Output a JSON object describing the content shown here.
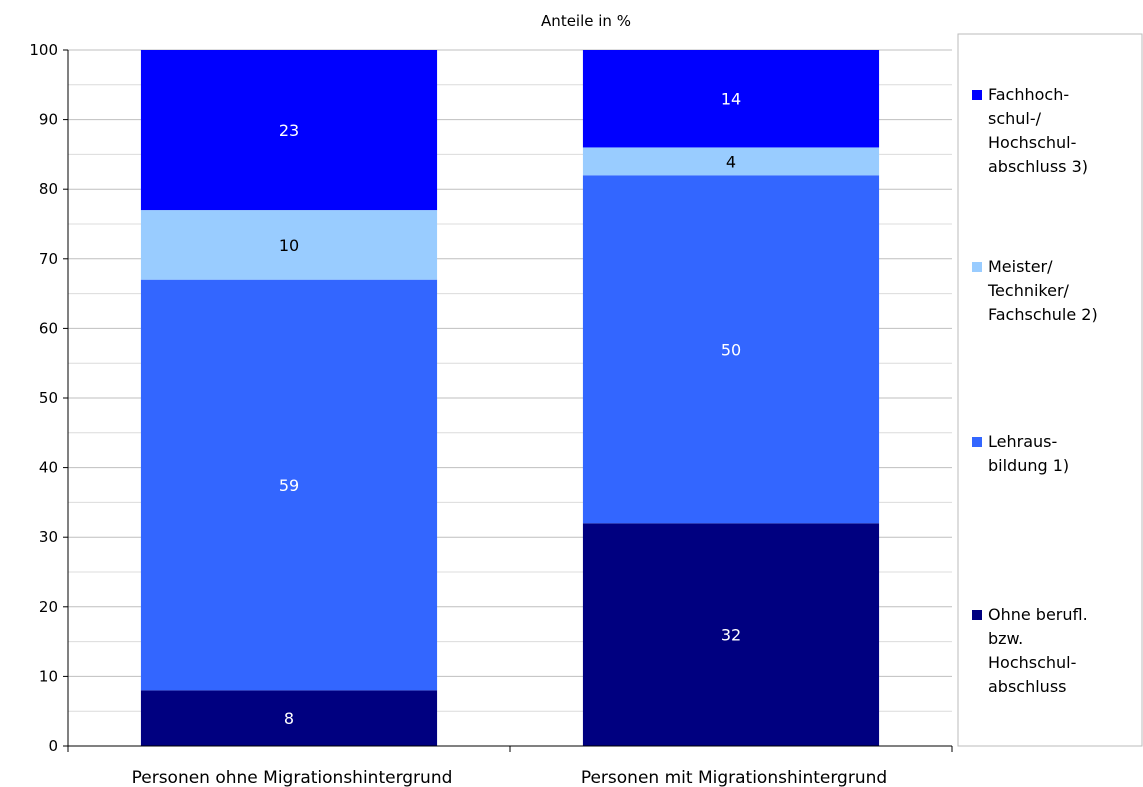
{
  "chart_data": {
    "type": "bar",
    "stacked": true,
    "title": "Anteile in %",
    "xlabel": "",
    "ylabel": "",
    "ylim": [
      0,
      100
    ],
    "yticks": [
      0,
      10,
      20,
      30,
      40,
      50,
      60,
      70,
      80,
      90,
      100
    ],
    "grid": true,
    "legend_position": "right",
    "categories": [
      "Personen ohne Migrationshintergrund",
      "Personen mit Migrationshintergrund"
    ],
    "series": [
      {
        "name": "Ohne berufl. bzw. Hochschul-abschluss",
        "legend_lines": [
          "Ohne berufl.",
          "bzw.",
          "Hochschul-",
          "abschluss"
        ],
        "color": "#000080",
        "label_color": "#ffffff",
        "values": [
          8,
          32
        ]
      },
      {
        "name": "Lehraus-bildung 1)",
        "legend_lines": [
          "Lehraus-",
          "bildung 1)"
        ],
        "color": "#3366ff",
        "label_color": "#ffffff",
        "values": [
          59,
          50
        ]
      },
      {
        "name": "Meister/ Techniker/ Fachschule 2)",
        "legend_lines": [
          "Meister/",
          "Techniker/",
          "Fachschule 2)"
        ],
        "color": "#99ccff",
        "label_color": "#000000",
        "values": [
          10,
          4
        ]
      },
      {
        "name": "Fachhoch-schul-/ Hochschul-abschluss 3)",
        "legend_lines": [
          "Fachhoch-",
          "schul-/",
          "Hochschul-",
          "abschluss 3)"
        ],
        "color": "#0000ff",
        "label_color": "#ffffff",
        "values": [
          23,
          14
        ]
      }
    ]
  }
}
